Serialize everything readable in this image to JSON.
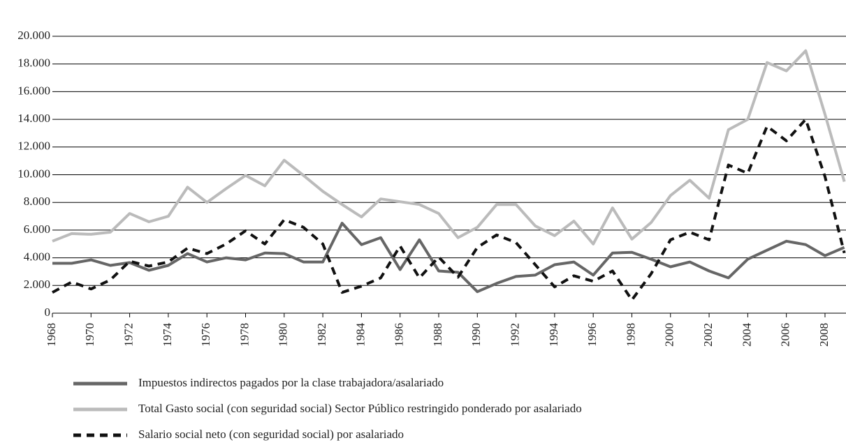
{
  "chart_data": {
    "type": "line",
    "x": [
      1968,
      1969,
      1970,
      1971,
      1972,
      1973,
      1974,
      1975,
      1976,
      1977,
      1978,
      1979,
      1980,
      1981,
      1982,
      1983,
      1984,
      1985,
      1986,
      1987,
      1988,
      1989,
      1990,
      1991,
      1992,
      1993,
      1994,
      1995,
      1996,
      1997,
      1998,
      1999,
      2000,
      2001,
      2002,
      2003,
      2004,
      2005,
      2006,
      2007,
      2008,
      2009
    ],
    "xlim": [
      1968,
      2009
    ],
    "xticks": [
      1968,
      1970,
      1972,
      1974,
      1976,
      1978,
      1980,
      1982,
      1984,
      1986,
      1988,
      1990,
      1992,
      1994,
      1996,
      1998,
      2000,
      2002,
      2004,
      2006,
      2008
    ],
    "ylim": [
      0,
      20000
    ],
    "yticks": [
      0,
      {
        "value": 2000,
        "label": "2.000"
      },
      {
        "value": 4000,
        "label": "4.000"
      },
      {
        "value": 6000,
        "label": "6.000"
      },
      {
        "value": 8000,
        "label": "8.000"
      },
      {
        "value": 10000,
        "label": "10.000"
      },
      {
        "value": 12000,
        "label": "12.000"
      },
      {
        "value": 14000,
        "label": "14.000"
      },
      {
        "value": 16000,
        "label": "16.000"
      },
      {
        "value": 18000,
        "label": "18.000"
      },
      {
        "value": 20000,
        "label": "20.000"
      }
    ],
    "grid": true,
    "series": [
      {
        "name": "Impuestos indirectos pagados por la clase trabajadora/asalariado",
        "color": "#666666",
        "dashed": false,
        "values": [
          3600,
          3600,
          3850,
          3450,
          3650,
          3100,
          3450,
          4300,
          3700,
          4000,
          3850,
          4350,
          4300,
          3700,
          3700,
          6500,
          4950,
          5450,
          3150,
          5300,
          3050,
          2950,
          1550,
          2150,
          2650,
          2750,
          3500,
          3700,
          2750,
          4350,
          4400,
          3900,
          3350,
          3700,
          3050,
          2550,
          3900,
          4550,
          5200,
          4950,
          4150,
          4750
        ]
      },
      {
        "name": "Total Gasto social (con seguridad social) Sector Público restringido ponderado por asalariado",
        "color": "#bbbbbb",
        "dashed": false,
        "values": [
          5200,
          5750,
          5700,
          5850,
          7200,
          6600,
          7000,
          9100,
          8000,
          9000,
          9950,
          9200,
          11050,
          9950,
          8800,
          7850,
          6950,
          8250,
          8050,
          7850,
          7200,
          5450,
          6200,
          7850,
          7850,
          6300,
          5600,
          6650,
          5000,
          7600,
          5350,
          6550,
          8500,
          9600,
          8300,
          13250,
          14000,
          18100,
          17500,
          18950,
          14350,
          9500
        ]
      },
      {
        "name": "Salario social neto (con seguridad social) por asalariado",
        "color": "#111111",
        "dashed": true,
        "values": [
          1500,
          2250,
          1750,
          2400,
          3750,
          3400,
          3700,
          4700,
          4300,
          5000,
          5950,
          5000,
          6750,
          6200,
          5000,
          1500,
          1950,
          2550,
          4850,
          2550,
          4050,
          2600,
          4750,
          5650,
          5100,
          3500,
          1900,
          2700,
          2300,
          3050,
          950,
          2850,
          5300,
          5850,
          5300,
          10700,
          10100,
          13500,
          12450,
          14000,
          9850,
          4350
        ]
      }
    ]
  }
}
